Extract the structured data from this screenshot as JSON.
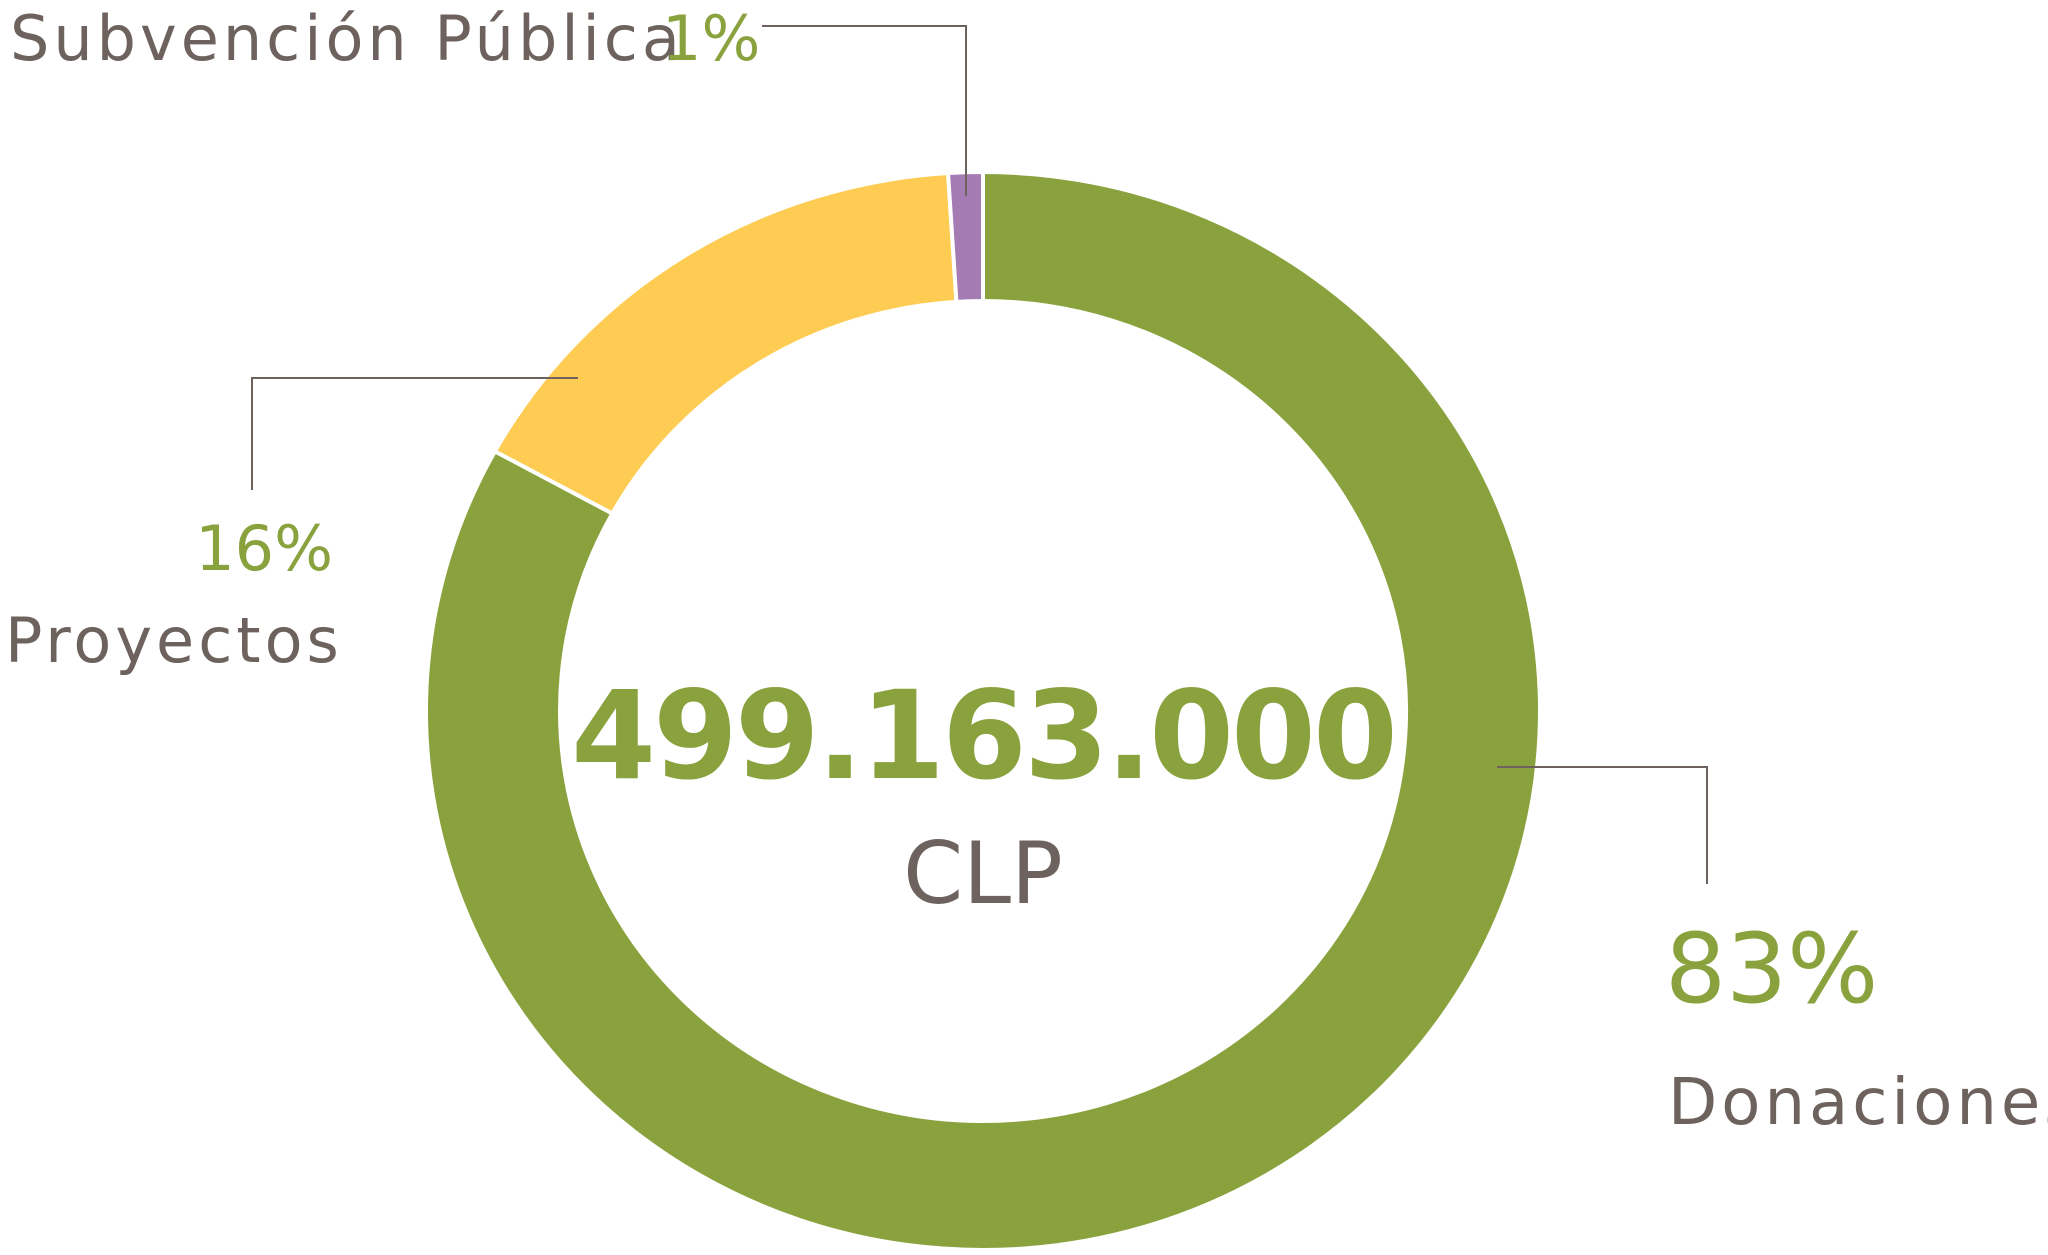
{
  "chart_data": {
    "type": "pie",
    "variant": "donut",
    "center": {
      "total": "499.163.000",
      "unit": "CLP"
    },
    "slices": [
      {
        "name": "Donaciones",
        "value": 83,
        "label": "83%",
        "color": "#8aa23e"
      },
      {
        "name": "Proyectos",
        "value": 16,
        "label": "16%",
        "color": "#fecc52"
      },
      {
        "name": "Subvención Pública",
        "value": 1,
        "label": "1%",
        "color": "#a57bb3"
      }
    ],
    "legend": "none"
  }
}
